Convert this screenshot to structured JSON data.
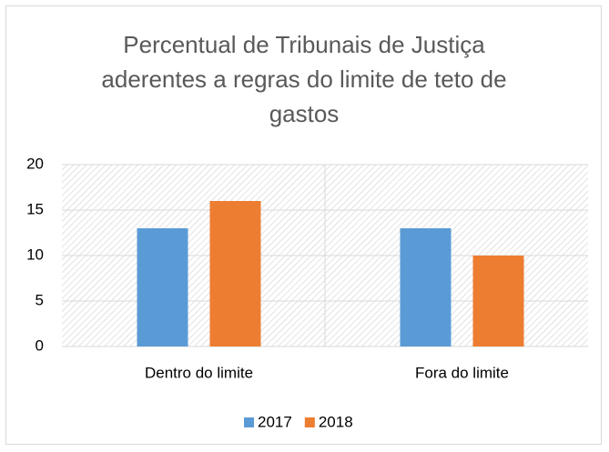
{
  "chart_data": {
    "type": "bar",
    "title": "Percentual de Tribunais de Justiça aderentes a regras do limite de teto de gastos",
    "categories": [
      "Dentro do limite",
      "Fora do limite"
    ],
    "series": [
      {
        "name": "2017",
        "color": "#5b9bd5",
        "values": [
          13,
          13
        ]
      },
      {
        "name": "2018",
        "color": "#ed7d31",
        "values": [
          16,
          10
        ]
      }
    ],
    "ylim": [
      0,
      20
    ],
    "yticks": [
      0,
      5,
      10,
      15,
      20
    ],
    "grid": true,
    "legend": "bottom"
  }
}
